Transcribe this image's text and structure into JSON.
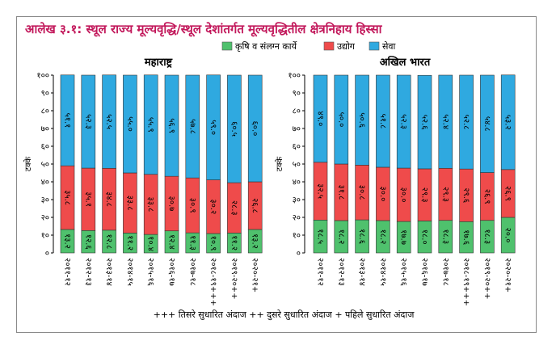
{
  "title": "आलेख ३.१: स्थूल राज्य मूल्यवृद्धि/स्थूल देशांतर्गत मूल्यवृद्धितील क्षेत्रनिहाय हिस्सा",
  "legend": [
    {
      "name": "कृषि व संलग्न कार्ये",
      "color": "#4fc16d"
    },
    {
      "name": "उद्योग",
      "color": "#ef4b4b"
    },
    {
      "name": "सेवा",
      "color": "#2fa9e0"
    }
  ],
  "footnote": "+++ तिसरे सुधारित अंदाज   ++ दुसरे सुधारित अंदाज   + पहिले सुधारित अंदाज",
  "chart_data": [
    {
      "type": "bar",
      "stacked": true,
      "title": "महाराष्ट्र",
      "ylabel": "टक्के",
      "ylim": [
        0,
        100
      ],
      "yticks": [
        "०",
        "१०",
        "२०",
        "३०",
        "४०",
        "५०",
        "६०",
        "७०",
        "८०",
        "९०",
        "१००"
      ],
      "categories": [
        "२०११-१२",
        "२०१२-१३",
        "२०१३-१४",
        "२०१४-१५",
        "२०१५-१६",
        "२०१६-१७",
        "२०१७-१८",
        "२०१८-१९+++",
        "२०१९-२०++",
        "२०२०-२१+"
      ],
      "series": [
        {
          "name": "कृषि व संलग्न कार्ये",
          "values": [
            13.2,
            12.6,
            12.8,
            11.2,
            10.4,
            12.4,
            11.3,
            10.9,
            11.2,
            13.2
          ],
          "labels": [
            "१३.२",
            "१२.६",
            "१२.८",
            "११.२",
            "१०.४",
            "१२.४",
            "११.३",
            "१०.९",
            "११.२",
            "१३.२"
          ]
        },
        {
          "name": "उद्योग",
          "values": [
            35.8,
            35.1,
            34.8,
            33.8,
            33.8,
            30.7,
            30.9,
            30.2,
            28.3,
            26.8
          ],
          "labels": [
            "३५.८",
            "३५.१",
            "३४.८",
            "३३.८",
            "३३.८",
            "३०.७",
            "३०.९",
            "३०.२",
            "२८.३",
            "२६.८"
          ]
        },
        {
          "name": "सेवा",
          "values": [
            51.1,
            52.3,
            52.5,
            55.0,
            55.9,
            56.9,
            57.8,
            59.0,
            60.5,
            60.0
          ],
          "labels": [
            "५१.१",
            "५२.३",
            "५२.५",
            "५५.०",
            "५५.९",
            "५६.९",
            "५७.८",
            "५९.०",
            "६०.५",
            "६०.०"
          ]
        }
      ]
    },
    {
      "type": "bar",
      "stacked": true,
      "title": "अखिल भारत",
      "ylabel": "टक्के",
      "ylim": [
        0,
        100
      ],
      "yticks": [
        "०",
        "१०",
        "२०",
        "३०",
        "४०",
        "५०",
        "६०",
        "७०",
        "८०",
        "९०",
        "१००"
      ],
      "categories": [
        "२०११-१२",
        "२०१२-१३",
        "२०१३-१४",
        "२०१४-१५",
        "२०१५-१६",
        "२०१६-१७",
        "२०१७-१८",
        "२०१८-१९+++",
        "२०१९-२०++",
        "२०२०-२१+"
      ],
      "series": [
        {
          "name": "कृषि व संलग्न कार्ये",
          "values": [
            18.5,
            18.2,
            18.6,
            18.2,
            17.7,
            18.0,
            18.3,
            17.6,
            18.3,
            20.0
          ],
          "labels": [
            "१८.५",
            "१८.२",
            "१८.६",
            "१८.२",
            "१७.७",
            "१८.०",
            "१८.३",
            "१७.६",
            "१८.३",
            "२०.०"
          ]
        },
        {
          "name": "उद्योग",
          "values": [
            32.5,
            31.8,
            30.8,
            30.0,
            30.0,
            29.3,
            29.3,
            29.6,
            26.9,
            26.9
          ],
          "labels": [
            "३२.५",
            "३१.८",
            "३०.८",
            "३०.०",
            "३०.०",
            "२९.३",
            "२९.३",
            "२९.६",
            "२६.९",
            "२६.९"
          ]
        },
        {
          "name": "सेवा",
          "values": [
            49.0,
            50.0,
            50.6,
            51.8,
            52.3,
            52.6,
            52.4,
            52.8,
            54.8,
            53.2
          ],
          "labels": [
            "४९.०",
            "५०.०",
            "५०.६",
            "५१.८",
            "५२.३",
            "५२.६",
            "५२.४",
            "५२.८",
            "५४.८",
            "५३.२"
          ]
        }
      ]
    }
  ]
}
